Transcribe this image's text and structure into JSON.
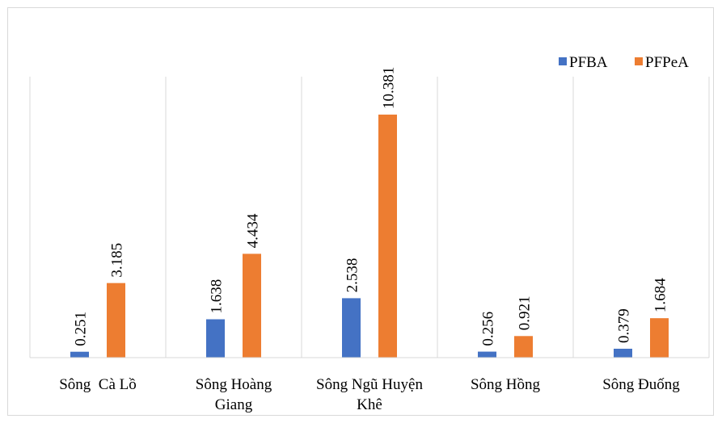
{
  "chart_data": {
    "type": "bar",
    "categories": [
      [
        "Sông  Cà Lồ"
      ],
      [
        "Sông Hoàng",
        "Giang"
      ],
      [
        "Sông Ngũ Huyện",
        "Khê"
      ],
      [
        "Sông Hồng"
      ],
      [
        "Sông Đuống"
      ]
    ],
    "series": [
      {
        "name": "PFBA",
        "color": "#4472c4",
        "values": [
          0.251,
          1.638,
          2.538,
          0.256,
          0.379
        ]
      },
      {
        "name": "PFPeA",
        "color": "#ed7d31",
        "values": [
          3.185,
          4.434,
          10.381,
          0.921,
          1.684
        ]
      }
    ],
    "data_labels": [
      [
        "0.251",
        "1.638",
        "2.538",
        "0.256",
        "0.379"
      ],
      [
        "3.185",
        "4.434",
        "10.381",
        "0.921",
        "1.684"
      ]
    ],
    "ylim": [
      0,
      12
    ],
    "grid": "vertical category separators",
    "legend_position": "top-right",
    "title": "",
    "xlabel": "",
    "ylabel": ""
  }
}
